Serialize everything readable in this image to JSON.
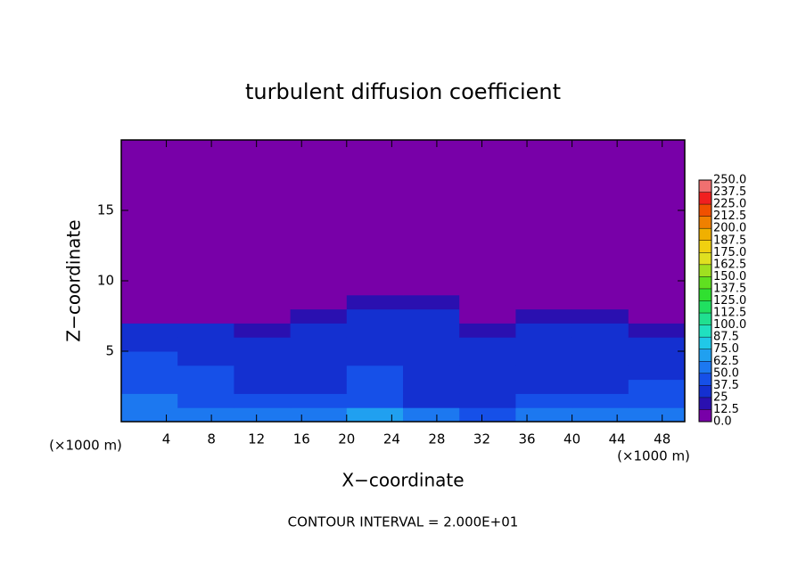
{
  "chart_data": {
    "type": "heatmap",
    "title": "turbulent diffusion coefficient",
    "xlabel": "X−coordinate",
    "ylabel": "Z−coordinate",
    "z_unit": "(×1000 m)",
    "x_unit": "(×1000 m)",
    "footer": "CONTOUR INTERVAL = 2.000E+01",
    "xlim": [
      0,
      50
    ],
    "ylim": [
      0,
      20
    ],
    "xticks": [
      4,
      8,
      12,
      16,
      20,
      24,
      28,
      32,
      36,
      40,
      44,
      48
    ],
    "yticks": [
      5,
      10,
      15
    ],
    "x_edges": [
      0,
      5,
      10,
      15,
      20,
      25,
      30,
      35,
      40,
      45,
      50
    ],
    "z_edges": [
      0,
      1,
      2,
      3,
      4,
      5,
      6,
      7,
      8,
      9,
      10,
      20
    ],
    "values": [
      [
        55,
        60,
        62,
        58,
        70,
        50,
        45,
        50,
        55,
        50
      ],
      [
        50,
        45,
        48,
        40,
        45,
        35,
        35,
        38,
        40,
        42
      ],
      [
        45,
        40,
        35,
        32,
        40,
        32,
        30,
        35,
        35,
        38
      ],
      [
        42,
        38,
        32,
        30,
        38,
        30,
        30,
        32,
        30,
        35
      ],
      [
        38,
        35,
        30,
        30,
        35,
        30,
        28,
        30,
        30,
        32
      ],
      [
        35,
        32,
        28,
        28,
        32,
        28,
        25,
        30,
        28,
        30
      ],
      [
        30,
        28,
        20,
        25,
        30,
        28,
        20,
        28,
        25,
        15
      ],
      [
        5,
        5,
        0,
        20,
        28,
        25,
        5,
        22,
        15,
        0
      ],
      [
        0,
        0,
        0,
        5,
        20,
        15,
        0,
        5,
        0,
        0
      ],
      [
        0,
        0,
        0,
        0,
        5,
        0,
        0,
        0,
        0,
        0
      ],
      [
        0,
        0,
        0,
        0,
        0,
        0,
        0,
        0,
        0,
        0
      ]
    ],
    "colorbar": {
      "ticks": [
        {
          "value": 0,
          "label": "0.0"
        },
        12.5,
        25.0,
        37.5,
        {
          "value": 50,
          "label": "50.0"
        },
        62.5,
        {
          "value": 75,
          "label": "75.0"
        },
        87.5,
        {
          "value": 100,
          "label": "100.0"
        },
        112.5,
        {
          "value": 125,
          "label": "125.0"
        },
        137.5,
        {
          "value": 150,
          "label": "150.0"
        },
        162.5,
        {
          "value": 175,
          "label": "175.0"
        },
        187.5,
        {
          "value": 200,
          "label": "200.0"
        },
        212.5,
        {
          "value": 225,
          "label": "225.0"
        },
        237.5,
        {
          "value": 250,
          "label": "250.0"
        }
      ],
      "colors": [
        "#7800a8",
        "#2a10b0",
        "#1430d0",
        "#1650e8",
        "#1c78f0",
        "#20a0f0",
        "#20c8e8",
        "#20e0c0",
        "#20e090",
        "#20e060",
        "#30e030",
        "#60e020",
        "#a0e020",
        "#e0e020",
        "#f0d010",
        "#f0b000",
        "#f08000",
        "#f05000",
        "#f02020",
        "#f07070"
      ]
    }
  }
}
